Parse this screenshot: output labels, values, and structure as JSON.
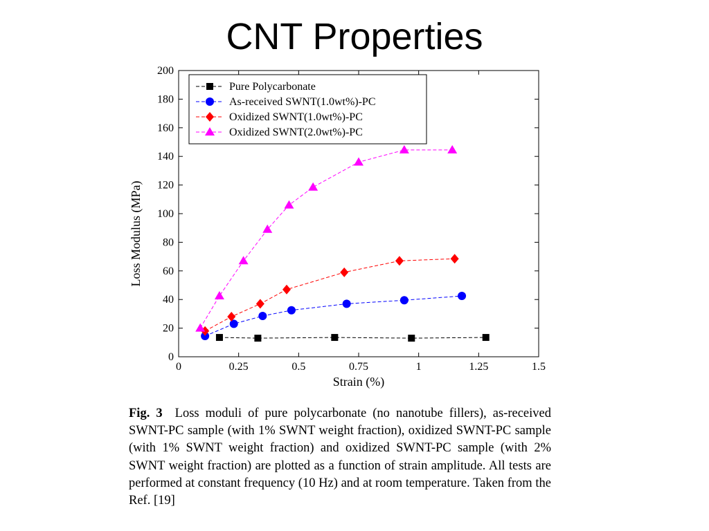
{
  "slide": {
    "title": "CNT Properties"
  },
  "caption": {
    "label": "Fig. 3",
    "text": "Loss moduli of pure polycarbonate (no nanotube fillers), as-received SWNT-PC sample (with 1% SWNT weight fraction), oxidized SWNT-PC sample (with 1% SWNT weight fraction) and oxidized SWNT-PC sample (with 2% SWNT weight fraction) are plotted as a function of strain amplitude. All tests are performed at constant frequency (10 Hz) and at room temperature. Taken from the Ref. [19]"
  },
  "chart_data": {
    "type": "line",
    "title": "",
    "xlabel": "Strain (%)",
    "ylabel": "Loss Modulus (MPa)",
    "xlim": [
      0,
      1.5
    ],
    "ylim": [
      0,
      200
    ],
    "x_ticks": [
      "0",
      "0.25",
      "0.5",
      "0.75",
      "1",
      "1.25",
      "1.5"
    ],
    "y_ticks": [
      "0",
      "20",
      "40",
      "60",
      "80",
      "100",
      "120",
      "140",
      "160",
      "180",
      "200"
    ],
    "grid": false,
    "legend_position": "top-left",
    "series": [
      {
        "name": "Pure Polycarbonate",
        "color": "#000000",
        "marker": "square",
        "x": [
          0.17,
          0.33,
          0.65,
          0.97,
          1.28
        ],
        "y": [
          13.5,
          13,
          13.5,
          13,
          13.5
        ]
      },
      {
        "name": "As-received SWNT(1.0wt%)-PC",
        "color": "#0000ff",
        "marker": "circle",
        "x": [
          0.11,
          0.23,
          0.35,
          0.47,
          0.7,
          0.94,
          1.18
        ],
        "y": [
          14.5,
          23,
          28.5,
          32.5,
          37,
          39.5,
          42.5
        ]
      },
      {
        "name": "Oxidized SWNT(1.0wt%)-PC",
        "color": "#ff0000",
        "marker": "diamond",
        "x": [
          0.11,
          0.22,
          0.34,
          0.45,
          0.69,
          0.92,
          1.15
        ],
        "y": [
          18,
          28,
          37,
          47,
          59,
          67,
          68.5
        ]
      },
      {
        "name": "Oxidized SWNT(2.0wt%)-PC",
        "color": "#ff00ff",
        "marker": "triangle",
        "x": [
          0.09,
          0.17,
          0.27,
          0.37,
          0.46,
          0.56,
          0.75,
          0.94,
          1.14
        ],
        "y": [
          20,
          42.5,
          67,
          89,
          106,
          118.5,
          136,
          144.5,
          144.5
        ]
      }
    ]
  }
}
